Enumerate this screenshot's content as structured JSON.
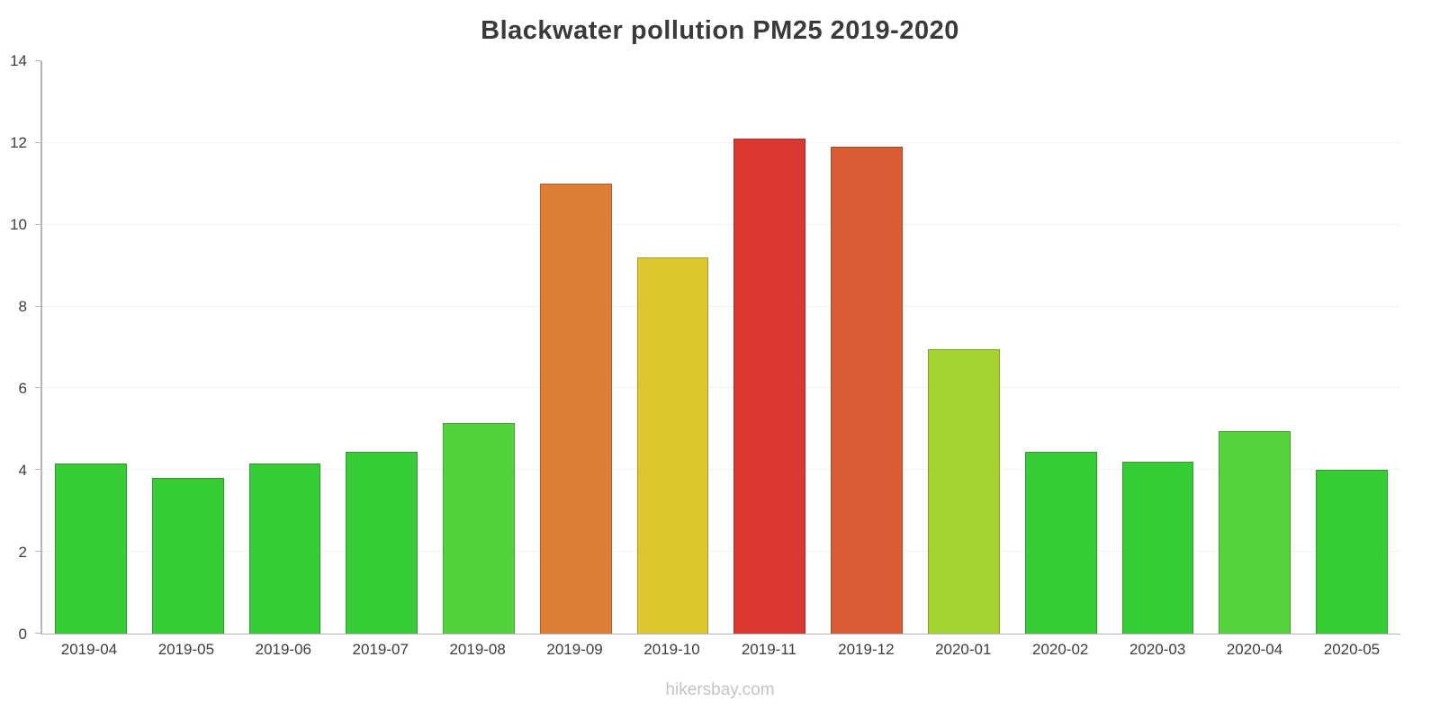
{
  "title": "Blackwater pollution PM25 2019-2020",
  "footer": "hikersbay.com",
  "colors": {
    "title": "#3a3a3a",
    "axis": "#b5b5b5",
    "labels": "#3d3d3d",
    "footer_text": "#c4c4c4",
    "green": "#35cc35",
    "light_green": "#55d23c",
    "lime": "#a3d32e",
    "yellow": "#dcc72e",
    "orange": "#dc7e35",
    "orange_red": "#d95b33",
    "red": "#dc3832"
  },
  "chart_data": {
    "type": "bar",
    "title": "Blackwater pollution PM25 2019-2020",
    "xlabel": "",
    "ylabel": "",
    "ylim": [
      0,
      14
    ],
    "ytick_step": 2,
    "grid": "faint-horizontal",
    "legend": "none",
    "categories": [
      "2019-04",
      "2019-05",
      "2019-06",
      "2019-07",
      "2019-08",
      "2019-09",
      "2019-10",
      "2019-11",
      "2019-12",
      "2020-01",
      "2020-02",
      "2020-03",
      "2020-04",
      "2020-05"
    ],
    "values": [
      4.15,
      3.8,
      4.15,
      4.45,
      5.15,
      11.0,
      9.2,
      12.1,
      11.9,
      6.95,
      4.45,
      4.2,
      4.95,
      4.0
    ],
    "bar_colors": [
      "#35cc35",
      "#35cc35",
      "#35cc35",
      "#35cc35",
      "#52d23b",
      "#dc7e35",
      "#dcc72e",
      "#dc3832",
      "#d95b33",
      "#a3d32e",
      "#35cc35",
      "#35cc35",
      "#55d23c",
      "#35cc35"
    ],
    "axis_color": "#b5b5b5",
    "label_color": "#3d3d3d",
    "title_color": "#3a3a3a",
    "footer_color": "#c4c4c4"
  }
}
